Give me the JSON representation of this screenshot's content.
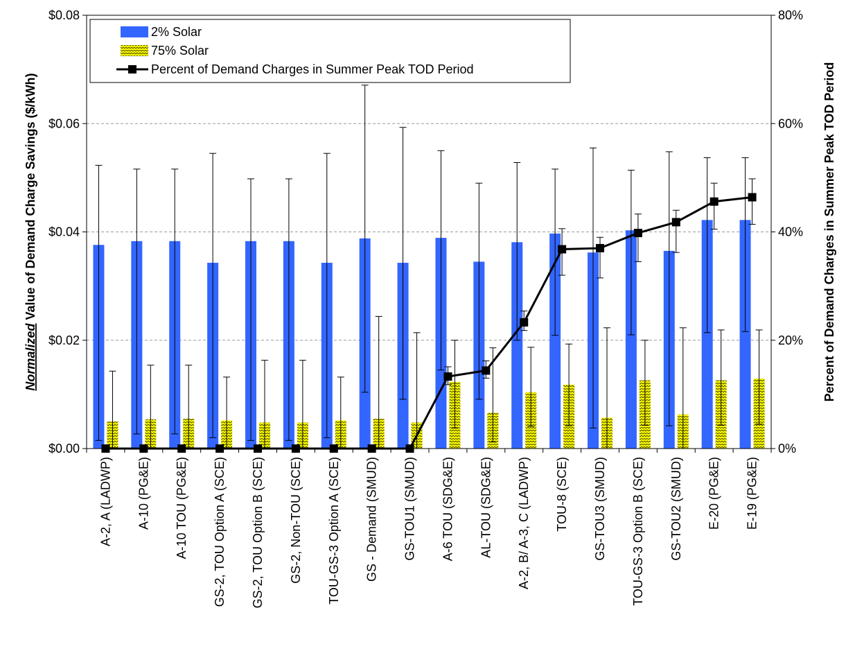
{
  "chart_data": {
    "type": "bar",
    "categories": [
      "A-2, A (LADWP)",
      "A-10 (PG&E)",
      "A-10 TOU (PG&E)",
      "GS-2,  TOU Option A (SCE)",
      "GS-2,  TOU Option B (SCE)",
      "GS-2, Non-TOU (SCE)",
      "TOU-GS-3 Option A (SCE)",
      "GS - Demand (SMUD)",
      "GS-TOU1 (SMUD)",
      "A-6 TOU (SDG&E)",
      "AL-TOU (SDG&E)",
      "A-2, B/ A-3, C (LADWP)",
      "TOU-8 (SCE)",
      "GS-TOU3 (SMUD)",
      "TOU-GS-3 Option B (SCE)",
      "GS-TOU2 (SMUD)",
      "E-20 (PG&E)",
      "E-19 (PG&E)"
    ],
    "series": [
      {
        "name": "2% Solar",
        "type": "bar",
        "axis": "left",
        "color": "#3366ff",
        "values": [
          0.0376,
          0.0383,
          0.0383,
          0.0343,
          0.0383,
          0.0383,
          0.0343,
          0.0388,
          0.0343,
          0.0389,
          0.0345,
          0.0381,
          0.0397,
          0.0362,
          0.0403,
          0.0365,
          0.0422,
          0.0422
        ],
        "error_low": [
          0.0015,
          0.0027,
          0.0027,
          0.002,
          0.0015,
          0.0015,
          0.002,
          0.0104,
          0.0091,
          0.0145,
          0.0091,
          0.02,
          0.0209,
          0.0038,
          0.021,
          0.0042,
          0.0214,
          0.0216
        ],
        "error_high": [
          0.0523,
          0.0516,
          0.0516,
          0.0545,
          0.0498,
          0.0498,
          0.0545,
          0.0671,
          0.0593,
          0.055,
          0.049,
          0.0528,
          0.0516,
          0.0555,
          0.0514,
          0.0548,
          0.0537,
          0.0537
        ]
      },
      {
        "name": "75% Solar",
        "type": "bar",
        "axis": "left",
        "color": "#ffff00",
        "pattern": "zigzag",
        "values": [
          0.005,
          0.0054,
          0.0055,
          0.0052,
          0.0048,
          0.0048,
          0.0052,
          0.0055,
          0.0048,
          0.0123,
          0.0066,
          0.0104,
          0.0118,
          0.0057,
          0.0126,
          0.0063,
          0.0126,
          0.0129
        ],
        "error_low": [
          0.0,
          0.0,
          0.0,
          0.0,
          0.0,
          0.0,
          0.0,
          0.0,
          0.0,
          0.0038,
          0.0012,
          0.0041,
          0.0042,
          0.0,
          0.0043,
          0.0,
          0.0043,
          0.0045
        ],
        "error_high": [
          0.0143,
          0.0154,
          0.0154,
          0.0132,
          0.0163,
          0.0163,
          0.0132,
          0.0244,
          0.0214,
          0.02,
          0.0186,
          0.0187,
          0.0193,
          0.0223,
          0.02,
          0.0223,
          0.0219,
          0.0219
        ]
      },
      {
        "name": "Percent of Demand Charges in Summer Peak TOD Period",
        "type": "line",
        "axis": "right",
        "color": "#000000",
        "values": [
          0,
          0,
          0,
          0,
          0,
          0,
          0,
          0,
          0,
          13.3,
          14.4,
          23.3,
          36.8,
          37.0,
          39.8,
          41.8,
          45.6,
          46.4
        ],
        "error_low": [
          null,
          null,
          null,
          null,
          null,
          null,
          null,
          null,
          null,
          11.8,
          13.0,
          21.8,
          32.0,
          31.5,
          34.5,
          36.2,
          40.5,
          41.4
        ],
        "error_high": [
          null,
          null,
          null,
          null,
          null,
          null,
          null,
          null,
          null,
          15.1,
          16.2,
          25.4,
          40.6,
          39.0,
          43.3,
          44.0,
          49.0,
          49.8
        ]
      }
    ],
    "y_left": {
      "label_prefix": "Normalized",
      "label_rest": " Value of Demand Charge Savings ($/kWh)",
      "ticks": [
        "$0.00",
        "$0.02",
        "$0.04",
        "$0.06",
        "$0.08"
      ],
      "ylim": [
        0,
        0.08
      ]
    },
    "y_right": {
      "label": "Percent of Demand Charges in Summer Peak TOD Period",
      "ticks": [
        "0%",
        "20%",
        "40%",
        "60%",
        "80%"
      ],
      "ylim": [
        0,
        80
      ]
    },
    "grid": true,
    "legend_position": "top-left"
  }
}
